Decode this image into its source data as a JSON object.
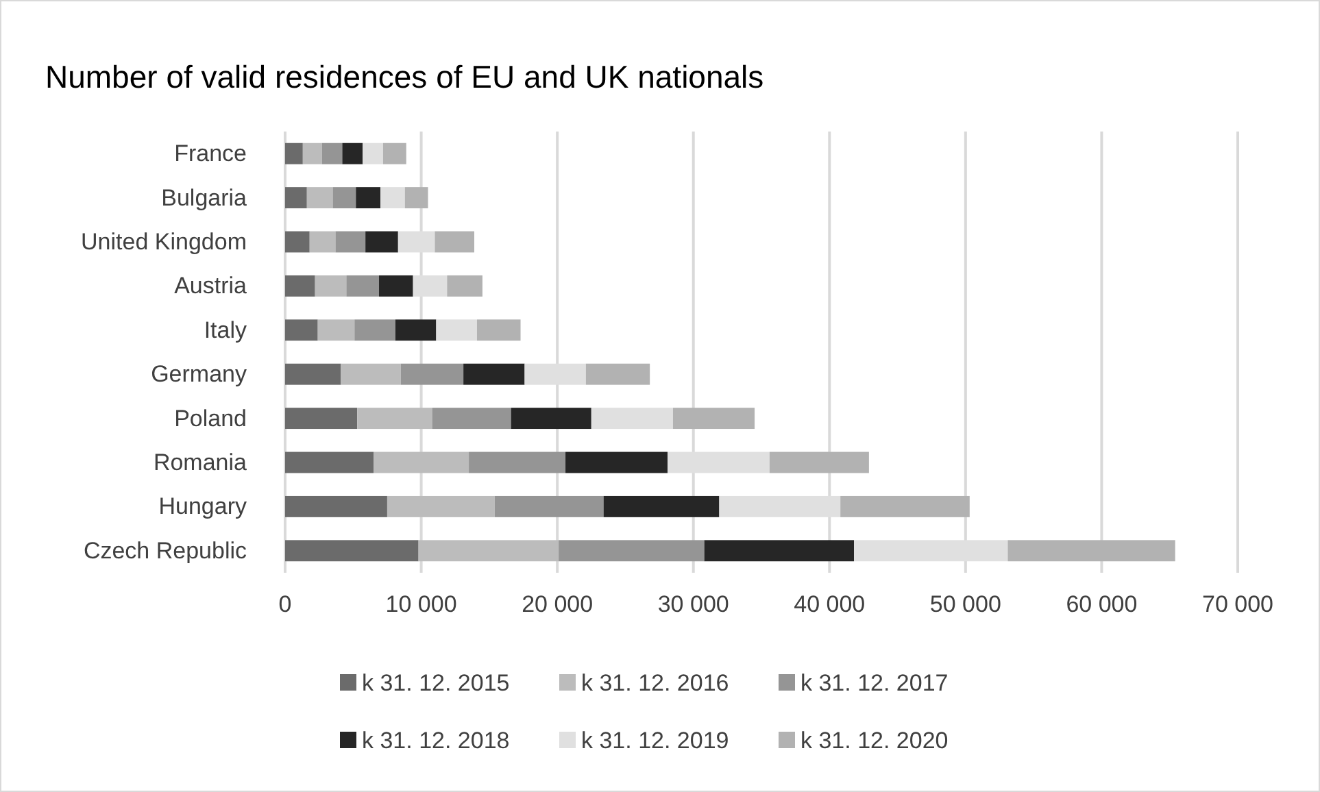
{
  "chart_data": {
    "type": "bar",
    "orientation": "horizontal",
    "stacked": true,
    "title": "Number of valid residences of EU and UK nationals",
    "categories": [
      "France",
      "Bulgaria",
      "United Kingdom",
      "Austria",
      "Italy",
      "Germany",
      "Poland",
      "Romania",
      "Hungary",
      "Czech Republic"
    ],
    "series": [
      {
        "name": "k 31. 12. 2015",
        "color": "#6b6b6b",
        "values": [
          1300,
          1600,
          1800,
          2200,
          2400,
          4100,
          5300,
          6500,
          7500,
          9800
        ]
      },
      {
        "name": "k 31. 12. 2016",
        "color": "#bcbcbc",
        "values": [
          1400,
          1900,
          1900,
          2300,
          2700,
          4400,
          5500,
          7000,
          7900,
          10300
        ]
      },
      {
        "name": "k 31. 12. 2017",
        "color": "#959595",
        "values": [
          1500,
          1700,
          2200,
          2400,
          3000,
          4600,
          5800,
          7100,
          8000,
          10700
        ]
      },
      {
        "name": "k 31. 12. 2018",
        "color": "#262626",
        "values": [
          1500,
          1800,
          2400,
          2500,
          3000,
          4500,
          5900,
          7500,
          8500,
          11000
        ]
      },
      {
        "name": "k 31. 12. 2019",
        "color": "#e0e0e0",
        "values": [
          1500,
          1800,
          2700,
          2500,
          3000,
          4500,
          6000,
          7500,
          8900,
          11300
        ]
      },
      {
        "name": "k 31. 12. 2020",
        "color": "#b2b2b2",
        "values": [
          1700,
          1700,
          2900,
          2600,
          3200,
          4700,
          6000,
          7300,
          9500,
          12300
        ]
      }
    ],
    "xlim": [
      0,
      70000
    ],
    "xticks": [
      0,
      {
        "value": 10000,
        "label": "10 000"
      },
      {
        "value": 20000,
        "label": "20 000"
      },
      {
        "value": 30000,
        "label": "30 000"
      },
      {
        "value": 40000,
        "label": "40 000"
      },
      {
        "value": 50000,
        "label": "50 000"
      },
      {
        "value": 60000,
        "label": "60 000"
      },
      {
        "value": 70000,
        "label": "70 000"
      }
    ],
    "grid": "x",
    "legend": "bottom"
  }
}
